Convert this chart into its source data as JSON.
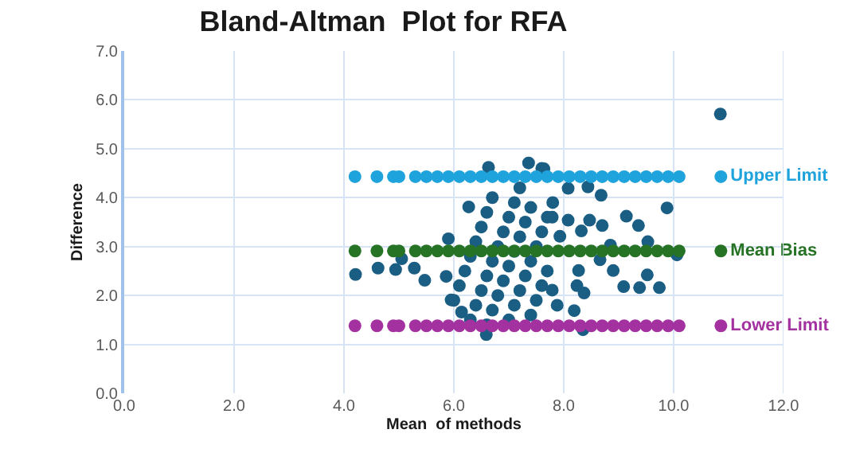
{
  "chart_data": {
    "type": "scatter",
    "title": "Bland-Altman  Plot for RFA",
    "xlabel": "Mean  of methods",
    "ylabel": "Difference",
    "marker": "circle",
    "grid": true,
    "legend": false,
    "xlim": [
      0,
      12
    ],
    "xticks": [
      {
        "value": 0,
        "label": "0.0"
      },
      {
        "value": 2,
        "label": "2.0"
      },
      {
        "value": 4,
        "label": "4.0"
      },
      {
        "value": 6,
        "label": "6.0"
      },
      {
        "value": 8,
        "label": "8.0"
      },
      {
        "value": 10,
        "label": "10.0"
      },
      {
        "value": 12,
        "label": "12.0"
      }
    ],
    "ylim": [
      0,
      7
    ],
    "yticks": [
      {
        "value": 0,
        "label": "0.0"
      },
      {
        "value": 1,
        "label": "1.0"
      },
      {
        "value": 2,
        "label": "2.0"
      },
      {
        "value": 3,
        "label": "3.0"
      },
      {
        "value": 4,
        "label": "4.0"
      },
      {
        "value": 5,
        "label": "5.0"
      },
      {
        "value": 6,
        "label": "6.0"
      },
      {
        "value": 7,
        "label": "7.0"
      }
    ],
    "series": [
      {
        "color": "#1b5e84",
        "x": [
          4.21,
          4.62,
          4.94,
          5.05,
          5.28,
          5.47,
          5.86,
          5.9,
          5.95,
          6.14,
          6.59,
          6.27,
          6.63,
          7.36,
          7.64,
          6.0,
          6.1,
          6.2,
          6.3,
          6.4,
          6.5,
          6.6,
          6.7,
          6.3,
          6.4,
          6.5,
          6.6,
          6.7,
          6.8,
          6.9,
          7.0,
          7.1,
          7.2,
          6.6,
          6.7,
          6.8,
          6.9,
          7.0,
          7.1,
          7.2,
          7.3,
          7.4,
          7.0,
          7.1,
          7.2,
          7.3,
          7.4,
          7.5,
          7.6,
          7.7,
          7.8,
          7.4,
          7.5,
          7.6,
          7.7,
          7.6,
          8.08,
          8.44,
          8.68,
          9.88,
          9.14,
          9.36,
          8.7,
          8.08,
          7.79,
          8.32,
          8.47,
          7.93,
          9.53,
          10.06,
          8.85,
          8.66,
          8.9,
          9.09,
          9.38,
          9.74,
          9.52,
          7.79,
          8.27,
          8.24,
          8.37,
          7.88,
          8.19,
          8.35,
          10.85
        ],
        "values": [
          2.43,
          2.56,
          2.53,
          2.75,
          2.56,
          2.31,
          2.39,
          3.16,
          1.91,
          1.66,
          1.2,
          3.81,
          4.62,
          4.71,
          4.59,
          1.9,
          2.2,
          2.5,
          2.8,
          3.1,
          3.4,
          3.7,
          4.0,
          1.5,
          1.8,
          2.1,
          2.4,
          2.7,
          3.0,
          3.3,
          3.6,
          3.9,
          4.2,
          1.4,
          1.7,
          2.0,
          2.3,
          2.6,
          2.9,
          3.2,
          3.5,
          3.8,
          1.5,
          1.8,
          2.1,
          2.4,
          2.7,
          3.0,
          3.3,
          3.6,
          3.9,
          1.6,
          1.9,
          2.2,
          2.5,
          4.6,
          4.19,
          4.22,
          4.05,
          3.79,
          3.62,
          3.43,
          3.43,
          3.54,
          3.6,
          3.32,
          3.54,
          3.21,
          3.1,
          2.83,
          3.03,
          2.73,
          2.51,
          2.18,
          2.16,
          2.16,
          2.42,
          2.11,
          2.51,
          2.2,
          2.05,
          1.8,
          1.69,
          1.3,
          5.71
        ]
      },
      {
        "name": "Upper Limit",
        "color": "#1fa3dc",
        "x": [
          4.2,
          4.6,
          4.9,
          5.0,
          5.3,
          5.5,
          5.7,
          5.9,
          6.1,
          6.3,
          6.5,
          6.7,
          6.9,
          7.1,
          7.3,
          7.5,
          7.7,
          7.9,
          8.1,
          8.3,
          8.5,
          8.7,
          8.9,
          9.1,
          9.3,
          9.5,
          9.7,
          9.9,
          10.1,
          10.86
        ],
        "values": [
          4.43,
          4.43,
          4.43,
          4.43,
          4.43,
          4.43,
          4.43,
          4.43,
          4.43,
          4.43,
          4.43,
          4.43,
          4.43,
          4.43,
          4.43,
          4.43,
          4.43,
          4.43,
          4.43,
          4.43,
          4.43,
          4.43,
          4.43,
          4.43,
          4.43,
          4.43,
          4.43,
          4.43,
          4.43,
          4.43
        ]
      },
      {
        "name": "Mean Bias",
        "color": "#267326",
        "x": [
          4.2,
          4.6,
          4.9,
          5.0,
          5.3,
          5.5,
          5.7,
          5.9,
          6.1,
          6.3,
          6.5,
          6.7,
          6.9,
          7.1,
          7.3,
          7.5,
          7.7,
          7.9,
          8.1,
          8.3,
          8.5,
          8.7,
          8.9,
          9.1,
          9.3,
          9.5,
          9.7,
          9.9,
          10.1,
          10.86
        ],
        "values": [
          2.91,
          2.91,
          2.91,
          2.91,
          2.91,
          2.91,
          2.91,
          2.91,
          2.91,
          2.91,
          2.91,
          2.91,
          2.91,
          2.91,
          2.91,
          2.91,
          2.91,
          2.91,
          2.91,
          2.91,
          2.91,
          2.91,
          2.91,
          2.91,
          2.91,
          2.91,
          2.91,
          2.91,
          2.91,
          2.91
        ]
      },
      {
        "name": "Lower Limit",
        "color": "#a3319f",
        "x": [
          4.2,
          4.6,
          4.9,
          5.0,
          5.3,
          5.5,
          5.7,
          5.9,
          6.1,
          6.3,
          6.5,
          6.7,
          6.9,
          7.1,
          7.3,
          7.5,
          7.7,
          7.9,
          8.1,
          8.3,
          8.5,
          8.7,
          8.9,
          9.1,
          9.3,
          9.5,
          9.7,
          9.9,
          10.1,
          10.86
        ],
        "values": [
          1.38,
          1.38,
          1.38,
          1.38,
          1.38,
          1.38,
          1.38,
          1.38,
          1.38,
          1.38,
          1.38,
          1.38,
          1.38,
          1.38,
          1.38,
          1.38,
          1.38,
          1.38,
          1.38,
          1.38,
          1.38,
          1.38,
          1.38,
          1.38,
          1.38,
          1.38,
          1.38,
          1.38,
          1.38,
          1.38
        ]
      }
    ]
  }
}
